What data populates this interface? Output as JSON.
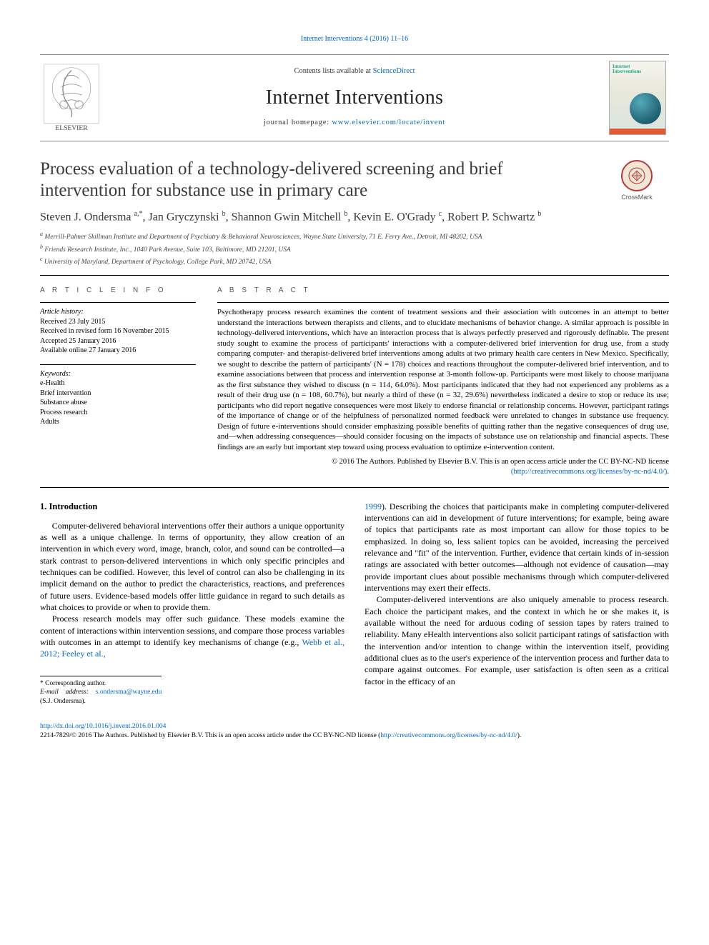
{
  "top_reference": "Internet Interventions 4 (2016) 11–16",
  "masthead": {
    "contents_prefix": "Contents lists available at ",
    "contents_link": "ScienceDirect",
    "journal_name": "Internet Interventions",
    "homepage_prefix": "journal homepage: ",
    "homepage_url": "www.elsevier.com/locate/invent",
    "cover_title": "Internet\nInterventions"
  },
  "title": "Process evaluation of a technology-delivered screening and brief intervention for substance use in primary care",
  "crossmark_label": "CrossMark",
  "authors_html": "Steven J. Ondersma <sup>a,*</sup>, Jan Gryczynski <sup>b</sup>, Shannon Gwin Mitchell <sup>b</sup>, Kevin E. O'Grady <sup>c</sup>, Robert P. Schwartz <sup>b</sup>",
  "affiliations": [
    "a  Merrill-Palmer Skillman Institute and Department of Psychiatry & Behavioral Neurosciences, Wayne State University, 71 E. Ferry Ave., Detroit, MI 48202, USA",
    "b  Friends Research Institute, Inc., 1040 Park Avenue, Suite 103, Baltimore, MD 21201, USA",
    "c  University of Maryland, Department of Psychology, College Park, MD 20742, USA"
  ],
  "info_head": "A R T I C L E   I N F O",
  "abs_head": "A B S T R A C T",
  "history_label": "Article history:",
  "history": [
    "Received 23 July 2015",
    "Received in revised form 16 November 2015",
    "Accepted 25 January 2016",
    "Available online 27 January 2016"
  ],
  "keywords_label": "Keywords:",
  "keywords": [
    "e-Health",
    "Brief intervention",
    "Substance abuse",
    "Process research",
    "Adults"
  ],
  "abstract": "Psychotherapy process research examines the content of treatment sessions and their association with outcomes in an attempt to better understand the interactions between therapists and clients, and to elucidate mechanisms of behavior change. A similar approach is possible in technology-delivered interventions, which have an interaction process that is always perfectly preserved and rigorously definable. The present study sought to examine the process of participants' interactions with a computer-delivered brief intervention for drug use, from a study comparing computer- and therapist-delivered brief interventions among adults at two primary health care centers in New Mexico. Specifically, we sought to describe the pattern of participants' (N = 178) choices and reactions throughout the computer-delivered brief intervention, and to examine associations between that process and intervention response at 3-month follow-up. Participants were most likely to choose marijuana as the first substance they wished to discuss (n = 114, 64.0%). Most participants indicated that they had not experienced any problems as a result of their drug use (n = 108, 60.7%), but nearly a third of these (n = 32, 29.6%) nevertheless indicated a desire to stop or reduce its use; participants who did report negative consequences were most likely to endorse financial or relationship concerns. However, participant ratings of the importance of change or of the helpfulness of personalized normed feedback were unrelated to changes in substance use frequency. Design of future e-interventions should consider emphasizing possible benefits of quitting rather than the negative consequences of drug use, and—when addressing consequences—should consider focusing on the impacts of substance use on relationship and financial aspects. These findings are an early but important step toward using process evaluation to optimize e-intervention content.",
  "copyright_line1": "© 2016 The Authors. Published by Elsevier B.V. This is an open access article under the CC BY-NC-ND license",
  "copyright_link": "(http://creativecommons.org/licenses/by-nc-nd/4.0/)",
  "intro_heading": "1. Introduction",
  "col1_p1": "Computer-delivered behavioral interventions offer their authors a unique opportunity as well as a unique challenge. In terms of opportunity, they allow creation of an intervention in which every word, image, branch, color, and sound can be controlled—a stark contrast to person-delivered interventions in which only specific principles and techniques can be codified. However, this level of control can also be challenging in its implicit demand on the author to predict the characteristics, reactions, and preferences of future users. Evidence-based models offer little guidance in regard to such details as what choices to provide or when to provide them.",
  "col1_p2_a": "Process research models may offer such guidance. These models examine the content of interactions within intervention sessions, and compare those process variables with outcomes in an attempt to identify key mechanisms of change (e.g., ",
  "col1_p2_link": "Webb et al., 2012; Feeley et al.,",
  "col2_p1_link": "1999",
  "col2_p1": "). Describing the choices that participants make in completing computer-delivered interventions can aid in development of future interventions; for example, being aware of topics that participants rate as most important can allow for those topics to be emphasized. In doing so, less salient topics can be avoided, increasing the perceived relevance and \"fit\" of the intervention. Further, evidence that certain kinds of in-session ratings are associated with better outcomes—although not evidence of causation—may provide important clues about possible mechanisms through which computer-delivered interventions may exert their effects.",
  "col2_p2": "Computer-delivered interventions are also uniquely amenable to process research. Each choice the participant makes, and the context in which he or she makes it, is available without the need for arduous coding of session tapes by raters trained to reliability. Many eHealth interventions also solicit participant ratings of satisfaction with the intervention and/or intention to change within the intervention itself, providing additional clues as to the user's experience of the intervention process and further data to compare against outcomes. For example, user satisfaction is often seen as a critical factor in the efficacy of an",
  "corr": {
    "label": "* Corresponding author.",
    "email_label": "E-mail address:",
    "email": "s.ondersma@wayne.edu",
    "whom": "(S.J. Ondersma)."
  },
  "footer": {
    "doi": "http://dx.doi.org/10.1016/j.invent.2016.01.004",
    "issn_line_a": "2214-7829/© 2016 The Authors. Published by Elsevier B.V. This is an open access article under the CC BY-NC-ND license (",
    "issn_link": "http://creativecommons.org/licenses/by-nc-nd/4.0/",
    "issn_line_b": ")."
  },
  "colors": {
    "link": "#0066cc",
    "text": "#000000",
    "heading": "#3a3a3a",
    "rule": "#000000",
    "crossmark_ring": "#b53a3a",
    "crossmark_bg": "#efe6d6",
    "elsevier_orange": "#e8762d"
  }
}
